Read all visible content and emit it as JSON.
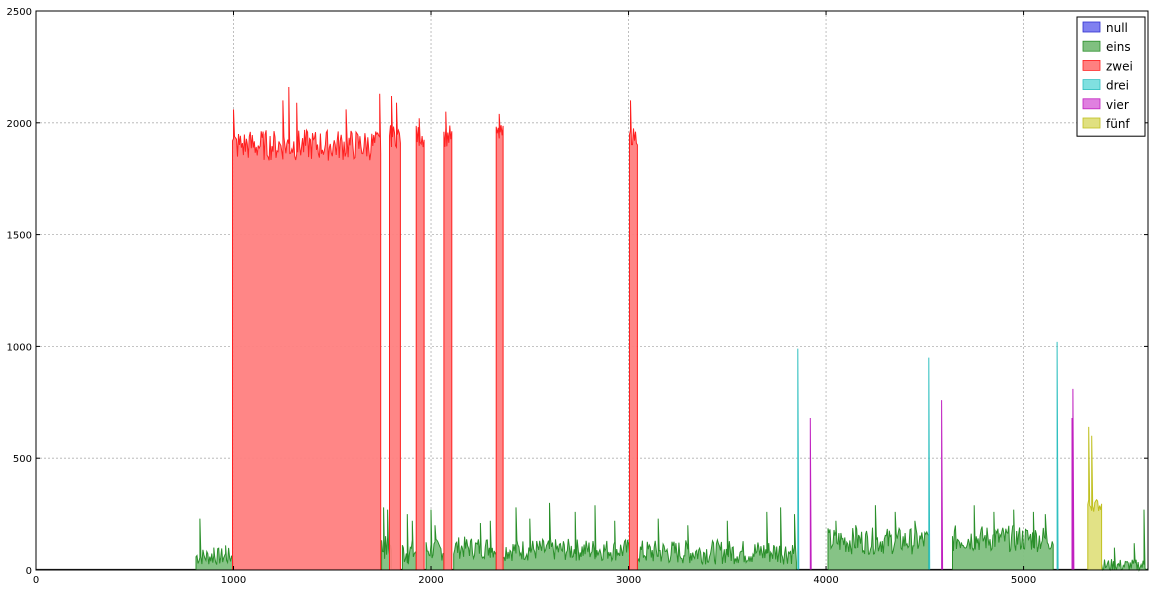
{
  "chart_data": {
    "type": "area",
    "title": "",
    "xlabel": "",
    "ylabel": "",
    "xlim": [
      0,
      5630
    ],
    "ylim": [
      0,
      2500
    ],
    "xticks": [
      0,
      1000,
      2000,
      3000,
      4000,
      5000
    ],
    "yticks": [
      0,
      500,
      1000,
      1500,
      2000,
      2500
    ],
    "grid": true,
    "legend_position": "top-right",
    "series": [
      {
        "name": "null",
        "fill": "#8080f0",
        "line": "#3030d0",
        "segments": []
      },
      {
        "name": "eins",
        "fill": "#80c080",
        "line": "#2a8f2a",
        "segments": [
          {
            "x0": 810,
            "x1": 1000,
            "base": 60,
            "amp": 40,
            "peaks": [
              [
                830,
                230
              ],
              [
                900,
                100
              ],
              [
                960,
                110
              ]
            ]
          },
          {
            "x0": 1750,
            "x1": 1800,
            "base": 100,
            "amp": 60,
            "peaks": [
              [
                1760,
                280
              ],
              [
                1780,
                270
              ]
            ]
          },
          {
            "x0": 1855,
            "x1": 1925,
            "base": 80,
            "amp": 60,
            "peaks": [
              [
                1880,
                250
              ],
              [
                1905,
                220
              ]
            ]
          },
          {
            "x0": 1975,
            "x1": 2065,
            "base": 90,
            "amp": 50,
            "peaks": [
              [
                2000,
                270
              ],
              [
                2020,
                200
              ]
            ]
          },
          {
            "x0": 2115,
            "x1": 2330,
            "base": 100,
            "amp": 50,
            "peaks": [
              [
                2250,
                210
              ],
              [
                2300,
                220
              ]
            ]
          },
          {
            "x0": 2360,
            "x1": 3005,
            "base": 90,
            "amp": 50,
            "peaks": [
              [
                2430,
                280
              ],
              [
                2500,
                230
              ],
              [
                2600,
                300
              ],
              [
                2730,
                260
              ],
              [
                2830,
                290
              ],
              [
                2930,
                220
              ]
            ]
          },
          {
            "x0": 3045,
            "x1": 3850,
            "base": 80,
            "amp": 55,
            "peaks": [
              [
                3150,
                230
              ],
              [
                3300,
                200
              ],
              [
                3500,
                220
              ],
              [
                3700,
                260
              ],
              [
                3770,
                280
              ],
              [
                3840,
                250
              ]
            ]
          },
          {
            "x0": 4010,
            "x1": 4520,
            "base": 130,
            "amp": 60,
            "peaks": [
              [
                4050,
                220
              ],
              [
                4150,
                200
              ],
              [
                4250,
                290
              ],
              [
                4350,
                260
              ],
              [
                4450,
                220
              ]
            ]
          },
          {
            "x0": 4640,
            "x1": 5150,
            "base": 140,
            "amp": 60,
            "peaks": [
              [
                4750,
                290
              ],
              [
                4850,
                260
              ],
              [
                4950,
                270
              ],
              [
                5050,
                260
              ],
              [
                5110,
                250
              ]
            ]
          },
          {
            "x0": 5395,
            "x1": 5630,
            "base": 20,
            "amp": 30,
            "peaks": [
              [
                5460,
                100
              ],
              [
                5560,
                120
              ],
              [
                5610,
                270
              ]
            ]
          }
        ]
      },
      {
        "name": "zwei",
        "fill": "#ff8080",
        "line": "#ff2020",
        "segments": [
          {
            "x0": 995,
            "x1": 1745,
            "base": 1900,
            "amp": 70,
            "peaks": [
              [
                1000,
                2060
              ],
              [
                1250,
                2100
              ],
              [
                1280,
                2160
              ],
              [
                1320,
                2090
              ],
              [
                1570,
                2060
              ],
              [
                1740,
                2130
              ]
            ]
          },
          {
            "x0": 1790,
            "x1": 1845,
            "base": 1940,
            "amp": 50,
            "peaks": [
              [
                1800,
                2120
              ],
              [
                1825,
                2090
              ]
            ]
          },
          {
            "x0": 1925,
            "x1": 1965,
            "base": 1940,
            "amp": 50,
            "peaks": [
              [
                1940,
                2020
              ]
            ]
          },
          {
            "x0": 2065,
            "x1": 2105,
            "base": 1940,
            "amp": 50,
            "peaks": [
              [
                2075,
                2050
              ]
            ]
          },
          {
            "x0": 2330,
            "x1": 2365,
            "base": 1950,
            "amp": 40,
            "peaks": [
              [
                2345,
                2040
              ]
            ]
          },
          {
            "x0": 3005,
            "x1": 3045,
            "base": 1940,
            "amp": 40,
            "peaks": [
              [
                3010,
                2100
              ]
            ]
          }
        ]
      },
      {
        "name": "drei",
        "fill": "#80e0e0",
        "line": "#30c0c0",
        "segments": [
          {
            "x0": 3852,
            "x1": 3862,
            "base": 0,
            "amp": 0,
            "peaks": [
              [
                3857,
                990
              ]
            ]
          },
          {
            "x0": 4515,
            "x1": 4525,
            "base": 0,
            "amp": 0,
            "peaks": [
              [
                4520,
                950
              ]
            ]
          },
          {
            "x0": 5165,
            "x1": 5180,
            "base": 0,
            "amp": 0,
            "peaks": [
              [
                5170,
                1020
              ]
            ]
          }
        ]
      },
      {
        "name": "vier",
        "fill": "#e080e0",
        "line": "#c020c0",
        "segments": [
          {
            "x0": 3915,
            "x1": 3925,
            "base": 0,
            "amp": 0,
            "peaks": [
              [
                3920,
                680
              ]
            ]
          },
          {
            "x0": 4580,
            "x1": 4590,
            "base": 0,
            "amp": 0,
            "peaks": [
              [
                4585,
                760
              ]
            ]
          },
          {
            "x0": 5245,
            "x1": 5258,
            "base": 0,
            "amp": 0,
            "peaks": [
              [
                5250,
                810
              ],
              [
                5245,
                680
              ]
            ]
          }
        ]
      },
      {
        "name": "fünf",
        "fill": "#e0e080",
        "line": "#c0c020",
        "segments": [
          {
            "x0": 5325,
            "x1": 5395,
            "base": 290,
            "amp": 30,
            "peaks": [
              [
                5330,
                640
              ],
              [
                5345,
                600
              ],
              [
                5360,
                300
              ]
            ]
          }
        ]
      }
    ]
  }
}
